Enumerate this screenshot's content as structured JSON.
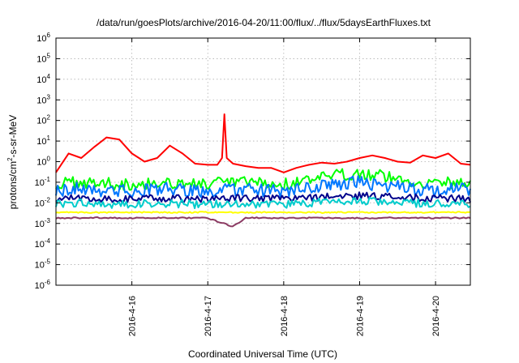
{
  "chart_data": {
    "type": "line",
    "title": "/data/run/goesPlots/archive/2016-04-20/11:00/flux/../flux/5daysEarthFluxes.txt",
    "xlabel": "Coordinated Universal Time (UTC)",
    "ylabel_parts": {
      "pre": "protons/cm",
      "sup": "2",
      "post": "-s-sr-MeV"
    },
    "yscale": "log",
    "ylim": [
      1e-06,
      1000000.0
    ],
    "y_ticks": [
      {
        "base": "10",
        "exp": "-6"
      },
      {
        "base": "10",
        "exp": "-5"
      },
      {
        "base": "10",
        "exp": "-4"
      },
      {
        "base": "10",
        "exp": "-3"
      },
      {
        "base": "10",
        "exp": "-2"
      },
      {
        "base": "10",
        "exp": "-1"
      },
      {
        "base": "10",
        "exp": "0"
      },
      {
        "base": "10",
        "exp": "1"
      },
      {
        "base": "10",
        "exp": "2"
      },
      {
        "base": "10",
        "exp": "3"
      },
      {
        "base": "10",
        "exp": "4"
      },
      {
        "base": "10",
        "exp": "5"
      },
      {
        "base": "10",
        "exp": "6"
      }
    ],
    "xlim": [
      "2016-4-15 00:00",
      "2016-4-20 11:00"
    ],
    "x_ticks": [
      "2016-4-16",
      "2016-4-17",
      "2016-4-18",
      "2016-4-19",
      "2016-4-20"
    ],
    "grid": true,
    "legend": false,
    "series": [
      {
        "color": "#ff0000",
        "x": [
          "2016-4-15 00:00",
          "2016-4-15 04:00",
          "2016-4-15 08:00",
          "2016-4-15 12:00",
          "2016-4-15 16:00",
          "2016-4-15 20:00",
          "2016-4-16 00:00",
          "2016-4-16 04:00",
          "2016-4-16 08:00",
          "2016-4-16 12:00",
          "2016-4-16 16:00",
          "2016-4-16 20:00",
          "2016-4-17 00:00",
          "2016-4-17 03:00",
          "2016-4-17 04:30",
          "2016-4-17 05:15",
          "2016-4-17 06:00",
          "2016-4-17 08:00",
          "2016-4-17 12:00",
          "2016-4-17 16:00",
          "2016-4-17 20:00",
          "2016-4-18 00:00",
          "2016-4-18 04:00",
          "2016-4-18 08:00",
          "2016-4-18 12:00",
          "2016-4-18 16:00",
          "2016-4-18 20:00",
          "2016-4-19 00:00",
          "2016-4-19 04:00",
          "2016-4-19 08:00",
          "2016-4-19 12:00",
          "2016-4-19 16:00",
          "2016-4-19 20:00",
          "2016-4-20 00:00",
          "2016-4-20 04:00",
          "2016-4-20 08:00",
          "2016-4-20 11:00"
        ],
        "y": [
          0.3,
          2.5,
          1.5,
          5,
          15,
          12,
          2.5,
          1,
          1.5,
          6,
          2.5,
          0.8,
          0.7,
          0.7,
          1.5,
          200,
          1.5,
          0.8,
          0.6,
          0.5,
          0.5,
          0.3,
          0.5,
          0.7,
          0.9,
          0.8,
          1.0,
          1.5,
          2,
          1.5,
          1.0,
          0.9,
          2,
          1.5,
          2.5,
          0.8,
          0.7
        ]
      },
      {
        "color": "#00ff00",
        "x": [
          "2016-4-15 00:00",
          "2016-4-15 08:00",
          "2016-4-15 16:00",
          "2016-4-16 00:00",
          "2016-4-16 08:00",
          "2016-4-16 16:00",
          "2016-4-17 00:00",
          "2016-4-17 08:00",
          "2016-4-17 16:00",
          "2016-4-18 00:00",
          "2016-4-18 08:00",
          "2016-4-18 16:00",
          "2016-4-19 00:00",
          "2016-4-19 08:00",
          "2016-4-19 16:00",
          "2016-4-20 00:00",
          "2016-4-20 08:00",
          "2016-4-20 11:00"
        ],
        "y": [
          0.08,
          0.1,
          0.09,
          0.08,
          0.1,
          0.09,
          0.08,
          0.1,
          0.09,
          0.08,
          0.12,
          0.2,
          0.3,
          0.2,
          0.1,
          0.09,
          0.1,
          0.09
        ]
      },
      {
        "color": "#0077ff",
        "x": [
          "2016-4-15 00:00",
          "2016-4-15 08:00",
          "2016-4-15 16:00",
          "2016-4-16 00:00",
          "2016-4-16 08:00",
          "2016-4-16 16:00",
          "2016-4-17 00:00",
          "2016-4-17 08:00",
          "2016-4-17 16:00",
          "2016-4-18 00:00",
          "2016-4-18 08:00",
          "2016-4-18 16:00",
          "2016-4-19 00:00",
          "2016-4-19 08:00",
          "2016-4-19 16:00",
          "2016-4-20 00:00",
          "2016-4-20 08:00",
          "2016-4-20 11:00"
        ],
        "y": [
          0.04,
          0.05,
          0.04,
          0.035,
          0.05,
          0.04,
          0.035,
          0.045,
          0.04,
          0.035,
          0.05,
          0.08,
          0.1,
          0.07,
          0.05,
          0.04,
          0.05,
          0.04
        ]
      },
      {
        "color": "#00008b",
        "x": [
          "2016-4-15 00:00",
          "2016-4-15 08:00",
          "2016-4-15 16:00",
          "2016-4-16 00:00",
          "2016-4-16 08:00",
          "2016-4-16 16:00",
          "2016-4-17 00:00",
          "2016-4-17 08:00",
          "2016-4-17 16:00",
          "2016-4-18 00:00",
          "2016-4-18 08:00",
          "2016-4-18 16:00",
          "2016-4-19 00:00",
          "2016-4-19 08:00",
          "2016-4-19 16:00",
          "2016-4-20 00:00",
          "2016-4-20 08:00",
          "2016-4-20 11:00"
        ],
        "y": [
          0.015,
          0.018,
          0.016,
          0.015,
          0.017,
          0.016,
          0.015,
          0.017,
          0.016,
          0.015,
          0.018,
          0.02,
          0.022,
          0.02,
          0.018,
          0.016,
          0.017,
          0.016
        ]
      },
      {
        "color": "#00cccc",
        "x": [
          "2016-4-15 00:00",
          "2016-4-15 08:00",
          "2016-4-15 16:00",
          "2016-4-16 00:00",
          "2016-4-16 08:00",
          "2016-4-16 16:00",
          "2016-4-17 00:00",
          "2016-4-17 08:00",
          "2016-4-17 16:00",
          "2016-4-18 00:00",
          "2016-4-18 08:00",
          "2016-4-18 16:00",
          "2016-4-19 00:00",
          "2016-4-19 08:00",
          "2016-4-19 16:00",
          "2016-4-20 00:00",
          "2016-4-20 08:00",
          "2016-4-20 11:00"
        ],
        "y": [
          0.009,
          0.01,
          0.009,
          0.008,
          0.01,
          0.009,
          0.008,
          0.01,
          0.009,
          0.008,
          0.01,
          0.011,
          0.012,
          0.011,
          0.01,
          0.009,
          0.01,
          0.009
        ]
      },
      {
        "color": "#ffff00",
        "x": [
          "2016-4-15 00:00",
          "2016-4-15 12:00",
          "2016-4-16 00:00",
          "2016-4-16 12:00",
          "2016-4-17 00:00",
          "2016-4-17 12:00",
          "2016-4-18 00:00",
          "2016-4-18 12:00",
          "2016-4-19 00:00",
          "2016-4-19 12:00",
          "2016-4-20 00:00",
          "2016-4-20 11:00"
        ],
        "y": [
          0.0035,
          0.0034,
          0.0035,
          0.0034,
          0.0035,
          0.0034,
          0.0035,
          0.0034,
          0.0035,
          0.0034,
          0.0035,
          0.0035
        ]
      },
      {
        "color": "#8b3a62",
        "x": [
          "2016-4-15 00:00",
          "2016-4-15 12:00",
          "2016-4-16 00:00",
          "2016-4-16 12:00",
          "2016-4-17 00:00",
          "2016-4-17 08:00",
          "2016-4-17 12:00",
          "2016-4-18 00:00",
          "2016-4-18 12:00",
          "2016-4-19 00:00",
          "2016-4-19 12:00",
          "2016-4-20 00:00",
          "2016-4-20 11:00"
        ],
        "y": [
          0.0018,
          0.0019,
          0.0018,
          0.0019,
          0.0018,
          0.0007,
          0.0019,
          0.0018,
          0.0019,
          0.0018,
          0.0019,
          0.0018,
          0.0019
        ]
      }
    ]
  }
}
